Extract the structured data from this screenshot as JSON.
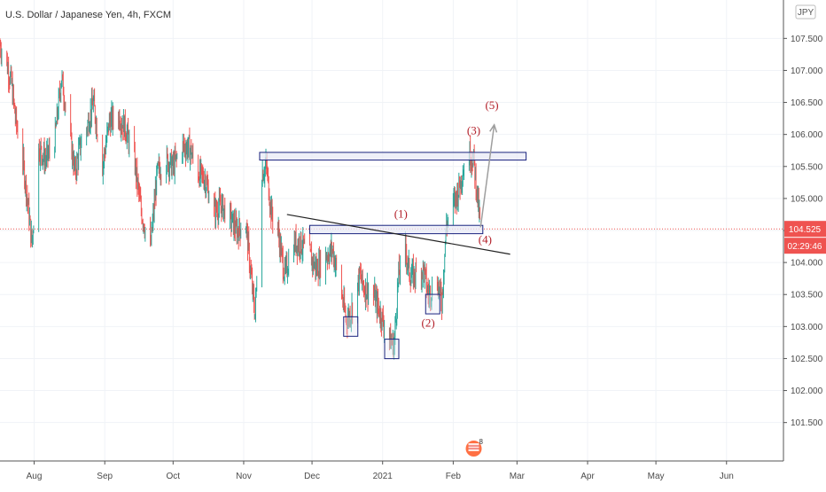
{
  "chart_data": {
    "type": "candlestick",
    "title": "U.S. Dollar / Japanese Yen, 4h, FXCM",
    "currency": "JPY",
    "y_axis": {
      "ticks": [
        101.5,
        102.0,
        102.5,
        103.0,
        103.5,
        104.0,
        104.5,
        105.0,
        105.5,
        106.0,
        106.5,
        107.0,
        107.5
      ],
      "tick_labels": [
        "101.500",
        "102.000",
        "102.500",
        "103.000",
        "103.500",
        "104.000",
        "104.500",
        "105.000",
        "105.500",
        "106.000",
        "106.500",
        "107.000",
        "107.500"
      ],
      "range": [
        100.9,
        108.1
      ]
    },
    "x_axis": {
      "labels": [
        "Aug",
        "Sep",
        "Oct",
        "Nov",
        "Dec",
        "2021",
        "Feb",
        "Mar",
        "Apr",
        "May",
        "Jun"
      ],
      "range": [
        "2020-07-17",
        "2021-06-26"
      ]
    },
    "price_path": [
      [
        "2020-07-17",
        107.4
      ],
      [
        "2020-07-20",
        107.1
      ],
      [
        "2020-07-22",
        106.8
      ],
      [
        "2020-07-24",
        106.2
      ],
      [
        "2020-07-27",
        105.6
      ],
      [
        "2020-07-29",
        105.0
      ],
      [
        "2020-07-31",
        104.3
      ],
      [
        "2020-08-03",
        105.8
      ],
      [
        "2020-08-06",
        105.6
      ],
      [
        "2020-08-10",
        105.9
      ],
      [
        "2020-08-13",
        106.9
      ],
      [
        "2020-08-15",
        106.4
      ],
      [
        "2020-08-19",
        105.4
      ],
      [
        "2020-08-21",
        105.8
      ],
      [
        "2020-08-24",
        106.1
      ],
      [
        "2020-08-27",
        106.5
      ],
      [
        "2020-08-31",
        105.5
      ],
      [
        "2020-09-03",
        106.2
      ],
      [
        "2020-09-07",
        106.3
      ],
      [
        "2020-09-10",
        106.1
      ],
      [
        "2020-09-14",
        105.6
      ],
      [
        "2020-09-17",
        104.8
      ],
      [
        "2020-09-21",
        104.2
      ],
      [
        "2020-09-24",
        105.4
      ],
      [
        "2020-09-28",
        105.6
      ],
      [
        "2020-10-01",
        105.5
      ],
      [
        "2020-10-05",
        105.8
      ],
      [
        "2020-10-08",
        105.8
      ],
      [
        "2020-10-12",
        105.4
      ],
      [
        "2020-10-15",
        105.3
      ],
      [
        "2020-10-19",
        104.8
      ],
      [
        "2020-10-22",
        104.9
      ],
      [
        "2020-10-26",
        104.7
      ],
      [
        "2020-10-29",
        104.5
      ],
      [
        "2020-11-02",
        104.6
      ],
      [
        "2020-11-05",
        103.5
      ],
      [
        "2020-11-06",
        103.2
      ],
      [
        "2020-11-09",
        105.4
      ],
      [
        "2020-11-11",
        105.5
      ],
      [
        "2020-11-13",
        104.8
      ],
      [
        "2020-11-16",
        104.5
      ],
      [
        "2020-11-19",
        103.8
      ],
      [
        "2020-11-23",
        104.3
      ],
      [
        "2020-11-26",
        104.3
      ],
      [
        "2020-11-30",
        104.1
      ],
      [
        "2020-12-03",
        103.9
      ],
      [
        "2020-12-07",
        104.1
      ],
      [
        "2020-12-10",
        104.2
      ],
      [
        "2020-12-14",
        103.5
      ],
      [
        "2020-12-16",
        103.1
      ],
      [
        "2020-12-18",
        103.2
      ],
      [
        "2020-12-22",
        103.8
      ],
      [
        "2020-12-24",
        103.6
      ],
      [
        "2020-12-28",
        103.5
      ],
      [
        "2020-12-31",
        103.2
      ],
      [
        "2021-01-04",
        102.8
      ],
      [
        "2021-01-06",
        102.7
      ],
      [
        "2021-01-08",
        103.8
      ],
      [
        "2021-01-11",
        104.2
      ],
      [
        "2021-01-13",
        103.8
      ],
      [
        "2021-01-15",
        103.8
      ],
      [
        "2021-01-19",
        103.9
      ],
      [
        "2021-01-21",
        103.5
      ],
      [
        "2021-01-25",
        103.7
      ],
      [
        "2021-01-27",
        103.4
      ],
      [
        "2021-01-29",
        104.6
      ],
      [
        "2021-02-01",
        104.9
      ],
      [
        "2021-02-03",
        105.1
      ],
      [
        "2021-02-05",
        105.4
      ],
      [
        "2021-02-08",
        105.7
      ],
      [
        "2021-02-10",
        105.6
      ],
      [
        "2021-02-12",
        104.9
      ],
      [
        "2021-02-13",
        104.525
      ]
    ],
    "last_price": {
      "value": 104.525,
      "label": "104.525",
      "countdown": "02:29:46"
    },
    "zones": [
      {
        "name": "resistance-zone-top",
        "x0": "2020-11-08",
        "x1": "2021-03-05",
        "y0": 105.6,
        "y1": 105.72
      },
      {
        "name": "support-zone-mid",
        "x0": "2020-11-30",
        "x1": "2021-02-14",
        "y0": 104.45,
        "y1": 104.58
      }
    ],
    "low_boxes": [
      {
        "name": "low-box-dec",
        "x": "2020-12-18",
        "y": 103.0
      },
      {
        "name": "low-box-jan",
        "x": "2021-01-05",
        "y": 102.65
      },
      {
        "name": "low-box-late-jan",
        "x": "2021-01-23",
        "y": 103.35
      }
    ],
    "trendline": {
      "x0": "2020-11-20",
      "y0": 104.75,
      "x1": "2021-02-26",
      "y1": 104.13
    },
    "projection": {
      "x0": "2021-02-13",
      "y0": 104.55,
      "x1": "2021-02-19",
      "y1": 106.15
    },
    "wave_labels": [
      {
        "text": "(1)",
        "x": "2021-01-09",
        "y": 104.7
      },
      {
        "text": "(2)",
        "x": "2021-01-21",
        "y": 103.0
      },
      {
        "text": "(3)",
        "x": "2021-02-10",
        "y": 106.0
      },
      {
        "text": "(4)",
        "x": "2021-02-15",
        "y": 104.3
      },
      {
        "text": "(5)",
        "x": "2021-02-18",
        "y": 106.4
      }
    ],
    "event_badge": {
      "text": "8",
      "x": "2021-02-10"
    },
    "colors": {
      "up": "#26a69a",
      "down": "#ef5350",
      "zone_edge": "#1a237e",
      "zone_fill": "#e8eaf6",
      "trend": "#222222",
      "proj": "#9e9e9e",
      "label": "#b3202a",
      "priceline": "#ef5350"
    }
  }
}
